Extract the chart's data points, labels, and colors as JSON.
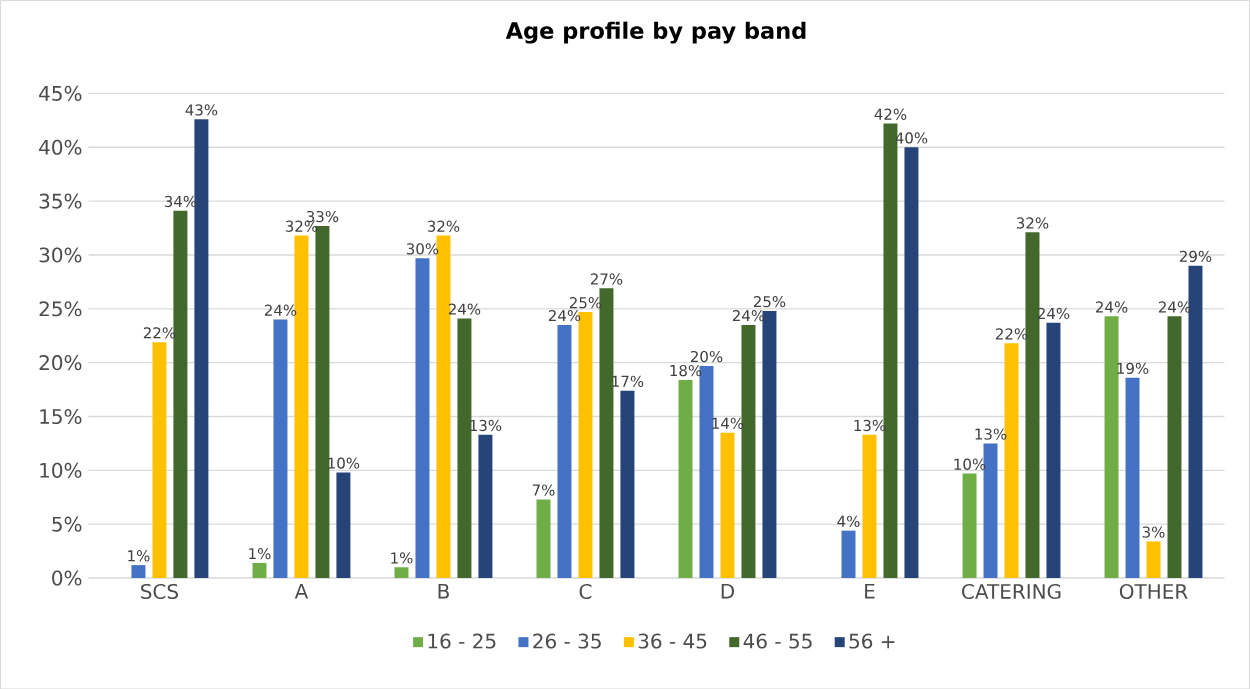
{
  "chart_data": {
    "type": "bar",
    "title": "Age profile by pay band",
    "categories": [
      "SCS",
      "A",
      "B",
      "C",
      "D",
      "E",
      "CATERING",
      "OTHER"
    ],
    "series": [
      {
        "name": "16 - 25",
        "color": "#70ad47",
        "values": [
          null,
          1.4,
          1.0,
          7.3,
          18.4,
          null,
          9.7,
          24.3
        ],
        "value_labels": [
          null,
          "1%",
          "1%",
          "7%",
          "18%",
          null,
          "10%",
          "24%"
        ]
      },
      {
        "name": "26 - 35",
        "color": "#4472c4",
        "values": [
          1.2,
          24.0,
          29.7,
          23.5,
          19.7,
          4.4,
          12.5,
          18.6
        ],
        "value_labels": [
          "1%",
          "24%",
          "30%",
          "24%",
          "20%",
          "4%",
          "13%",
          "19%"
        ]
      },
      {
        "name": "36 - 45",
        "color": "#ffc000",
        "values": [
          21.9,
          31.8,
          31.8,
          24.7,
          13.5,
          13.3,
          21.8,
          3.4
        ],
        "value_labels": [
          "22%",
          "32%",
          "32%",
          "25%",
          "14%",
          "13%",
          "22%",
          "3%"
        ]
      },
      {
        "name": "46 - 55",
        "color": "#43682b",
        "values": [
          34.1,
          32.7,
          24.1,
          26.9,
          23.5,
          42.2,
          32.1,
          24.3
        ],
        "value_labels": [
          "34%",
          "33%",
          "24%",
          "27%",
          "24%",
          "42%",
          "32%",
          "24%"
        ]
      },
      {
        "name": "56 +",
        "color": "#264478",
        "values": [
          42.6,
          9.8,
          13.3,
          17.4,
          24.8,
          40.0,
          23.7,
          29.0
        ],
        "value_labels": [
          "43%",
          "10%",
          "13%",
          "17%",
          "25%",
          "40%",
          "24%",
          "29%"
        ]
      }
    ],
    "ylim": [
      0,
      45
    ],
    "yticks": [
      {
        "value": 0,
        "label": "0%"
      },
      {
        "value": 5,
        "label": "5%"
      },
      {
        "value": 10,
        "label": "10%"
      },
      {
        "value": 15,
        "label": "15%"
      },
      {
        "value": 20,
        "label": "20%"
      },
      {
        "value": 25,
        "label": "25%"
      },
      {
        "value": 30,
        "label": "30%"
      },
      {
        "value": 35,
        "label": "35%"
      },
      {
        "value": 40,
        "label": "40%"
      },
      {
        "value": 45,
        "label": "45%"
      }
    ],
    "grid": "y",
    "legend": "bottom"
  }
}
